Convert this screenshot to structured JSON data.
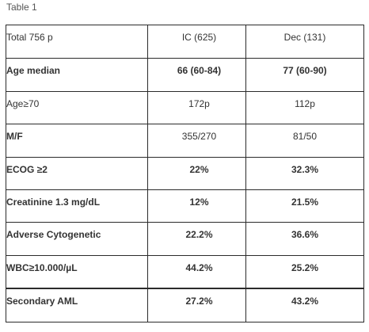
{
  "caption": "Table 1",
  "table": {
    "rows": [
      {
        "label": "Total 756 p",
        "ic": "IC (625)",
        "dec": "Dec (131)"
      },
      {
        "label": "Age median",
        "ic": "66 (60-84)",
        "dec": "77 (60-90)"
      },
      {
        "label": "Age≥70",
        "ic": "172p",
        "dec": "112p"
      },
      {
        "label": "M/F",
        "ic": "355/270",
        "dec": "81/50"
      },
      {
        "label": "ECOG ≥2",
        "ic": "22%",
        "dec": "32.3%"
      },
      {
        "label": "Creatinine 1.3 mg/dL",
        "ic": "12%",
        "dec": "21.5%"
      },
      {
        "label": "Adverse Cytogenetic",
        "ic": "22.2%",
        "dec": "36.6%"
      },
      {
        "label": "WBC≥10.000/µL",
        "ic": "44.2%",
        "dec": "25.2%"
      },
      {
        "label": "Secondary AML",
        "ic": "27.2%",
        "dec": "43.2%"
      }
    ]
  }
}
